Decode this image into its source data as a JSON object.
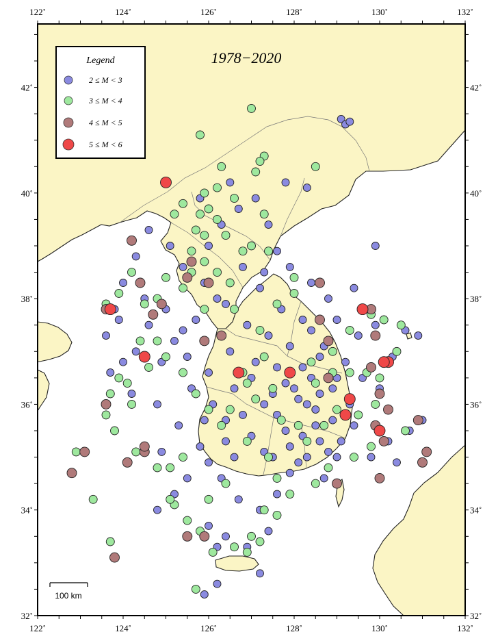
{
  "title": "1978−2020",
  "lon_ticks": [
    "122˚",
    "124˚",
    "126˚",
    "128˚",
    "130˚",
    "132˚"
  ],
  "lat_ticks": [
    "32˚",
    "34˚",
    "36˚",
    "38˚",
    "40˚",
    "42˚"
  ],
  "legend": {
    "title": "Legend",
    "items": [
      {
        "label": "2 ≤ M < 3",
        "color": "#8a8ae0"
      },
      {
        "label": "3 ≤ M < 4",
        "color": "#9ee89e"
      },
      {
        "label": "4 ≤ M < 5",
        "color": "#b07a7a"
      },
      {
        "label": "5 ≤ M < 6",
        "color": "#ef4848"
      }
    ]
  },
  "scale_bar": {
    "label": "100 km"
  },
  "colors": {
    "land": "#fbf5c5",
    "sea": "#ffffff",
    "coast": "#222222",
    "border": "#666666"
  },
  "chart_data": {
    "type": "scatter",
    "title": "1978−2020",
    "xlim": [
      122,
      132
    ],
    "ylim": [
      32,
      43.2
    ],
    "series": [
      {
        "name": "2 ≤ M < 3",
        "points": [
          [
            124.9,
            35.1
          ],
          [
            126.2,
            33.3
          ],
          [
            125.9,
            32.4
          ],
          [
            126.5,
            37.0
          ],
          [
            127.0,
            36.5
          ],
          [
            127.5,
            36.2
          ],
          [
            128.1,
            36.1
          ],
          [
            128.5,
            35.9
          ],
          [
            128.9,
            35.7
          ],
          [
            129.3,
            36.0
          ],
          [
            129.6,
            36.5
          ],
          [
            129.5,
            37.3
          ],
          [
            129.0,
            37.6
          ],
          [
            128.6,
            36.9
          ],
          [
            128.2,
            36.7
          ],
          [
            127.8,
            36.4
          ],
          [
            127.3,
            36.0
          ],
          [
            126.8,
            35.8
          ],
          [
            126.4,
            35.3
          ],
          [
            126.0,
            34.9
          ],
          [
            125.5,
            34.6
          ],
          [
            125.2,
            34.3
          ],
          [
            124.8,
            34.0
          ],
          [
            126.0,
            33.7
          ],
          [
            126.4,
            33.5
          ],
          [
            126.9,
            33.3
          ],
          [
            127.4,
            33.6
          ],
          [
            127.6,
            34.3
          ],
          [
            127.9,
            34.7
          ],
          [
            128.3,
            35.0
          ],
          [
            128.8,
            35.1
          ],
          [
            129.1,
            35.3
          ],
          [
            129.4,
            35.6
          ],
          [
            129.8,
            35.0
          ],
          [
            130.2,
            35.3
          ],
          [
            130.4,
            34.9
          ],
          [
            130.7,
            35.5
          ],
          [
            130.0,
            36.3
          ],
          [
            130.3,
            36.9
          ],
          [
            129.9,
            37.5
          ],
          [
            129.4,
            38.2
          ],
          [
            128.8,
            38.0
          ],
          [
            128.4,
            37.4
          ],
          [
            127.9,
            37.1
          ],
          [
            127.4,
            37.3
          ],
          [
            126.9,
            37.5
          ],
          [
            126.4,
            37.9
          ],
          [
            125.9,
            38.3
          ],
          [
            125.4,
            38.6
          ],
          [
            125.1,
            39.0
          ],
          [
            124.6,
            39.3
          ],
          [
            124.3,
            38.8
          ],
          [
            124.0,
            38.3
          ],
          [
            123.8,
            37.8
          ],
          [
            123.6,
            37.3
          ],
          [
            123.7,
            36.6
          ],
          [
            124.2,
            36.2
          ],
          [
            124.8,
            36.0
          ],
          [
            125.3,
            35.6
          ],
          [
            125.8,
            35.2
          ],
          [
            126.3,
            34.6
          ],
          [
            126.7,
            34.2
          ],
          [
            127.2,
            34.0
          ],
          [
            127.5,
            35.0
          ],
          [
            127.8,
            35.5
          ],
          [
            128.2,
            35.4
          ],
          [
            128.6,
            35.3
          ],
          [
            129.0,
            35.0
          ],
          [
            128.7,
            34.6
          ],
          [
            128.1,
            34.9
          ],
          [
            126.0,
            39.0
          ],
          [
            126.3,
            39.4
          ],
          [
            126.7,
            39.7
          ],
          [
            127.1,
            39.9
          ],
          [
            127.4,
            39.4
          ],
          [
            127.6,
            38.9
          ],
          [
            127.3,
            38.5
          ],
          [
            126.8,
            38.6
          ],
          [
            126.2,
            38.0
          ],
          [
            125.7,
            37.6
          ],
          [
            125.2,
            37.2
          ],
          [
            124.9,
            36.8
          ],
          [
            125.5,
            36.9
          ],
          [
            126.0,
            36.6
          ],
          [
            126.6,
            36.3
          ],
          [
            127.1,
            36.8
          ],
          [
            127.6,
            36.7
          ],
          [
            128.0,
            36.3
          ],
          [
            128.4,
            36.5
          ],
          [
            128.9,
            36.3
          ],
          [
            129.2,
            36.8
          ],
          [
            128.7,
            37.1
          ],
          [
            128.2,
            37.6
          ],
          [
            127.7,
            37.8
          ],
          [
            127.2,
            38.2
          ],
          [
            127.9,
            38.6
          ],
          [
            128.4,
            38.3
          ],
          [
            129.9,
            39.0
          ],
          [
            125.8,
            39.9
          ],
          [
            126.5,
            40.2
          ],
          [
            127.8,
            40.2
          ],
          [
            128.3,
            40.1
          ],
          [
            129.1,
            41.4
          ],
          [
            129.2,
            41.3
          ],
          [
            129.3,
            41.35
          ],
          [
            130.9,
            37.3
          ],
          [
            130.6,
            37.4
          ],
          [
            131.0,
            35.7
          ],
          [
            126.2,
            32.6
          ],
          [
            127.2,
            32.8
          ],
          [
            126.6,
            35.0
          ],
          [
            127.0,
            35.4
          ],
          [
            127.3,
            35.1
          ],
          [
            127.6,
            35.8
          ],
          [
            128.3,
            36.0
          ],
          [
            128.6,
            36.2
          ],
          [
            129.0,
            36.5
          ],
          [
            128.5,
            35.6
          ],
          [
            127.9,
            35.2
          ],
          [
            126.1,
            36.0
          ],
          [
            125.6,
            36.3
          ],
          [
            125.9,
            35.7
          ],
          [
            126.4,
            35.7
          ],
          [
            124.6,
            37.5
          ],
          [
            124.3,
            37.0
          ],
          [
            124.0,
            36.8
          ],
          [
            123.9,
            37.6
          ],
          [
            124.5,
            38.0
          ],
          [
            125.0,
            37.8
          ],
          [
            125.4,
            37.4
          ]
        ]
      },
      {
        "name": "3 ≤ M < 4",
        "points": [
          [
            127.0,
            41.6
          ],
          [
            125.8,
            41.1
          ],
          [
            127.3,
            40.7
          ],
          [
            127.2,
            40.6
          ],
          [
            126.3,
            40.5
          ],
          [
            127.1,
            40.4
          ],
          [
            128.5,
            40.5
          ],
          [
            125.4,
            39.8
          ],
          [
            125.8,
            39.6
          ],
          [
            126.2,
            39.5
          ],
          [
            125.9,
            39.2
          ],
          [
            125.6,
            38.9
          ],
          [
            125.9,
            38.7
          ],
          [
            125.6,
            38.5
          ],
          [
            126.2,
            38.5
          ],
          [
            125.0,
            38.4
          ],
          [
            124.8,
            38.0
          ],
          [
            124.5,
            37.9
          ],
          [
            124.2,
            38.5
          ],
          [
            123.9,
            38.1
          ],
          [
            123.6,
            37.9
          ],
          [
            124.4,
            37.2
          ],
          [
            125.0,
            36.9
          ],
          [
            125.4,
            36.6
          ],
          [
            125.7,
            36.2
          ],
          [
            126.0,
            35.9
          ],
          [
            126.3,
            35.6
          ],
          [
            126.9,
            35.3
          ],
          [
            127.4,
            35.0
          ],
          [
            127.6,
            34.6
          ],
          [
            127.3,
            34.0
          ],
          [
            127.0,
            33.5
          ],
          [
            126.6,
            33.3
          ],
          [
            126.1,
            33.2
          ],
          [
            125.8,
            33.6
          ],
          [
            125.5,
            33.8
          ],
          [
            125.2,
            34.1
          ],
          [
            125.1,
            34.2
          ],
          [
            124.8,
            34.8
          ],
          [
            124.3,
            35.1
          ],
          [
            123.8,
            35.5
          ],
          [
            123.6,
            35.8
          ],
          [
            123.7,
            36.2
          ],
          [
            123.9,
            36.5
          ],
          [
            124.1,
            36.4
          ],
          [
            124.6,
            36.7
          ],
          [
            125.4,
            35.0
          ],
          [
            125.1,
            34.8
          ],
          [
            126.0,
            34.2
          ],
          [
            126.4,
            34.5
          ],
          [
            127.7,
            35.7
          ],
          [
            128.1,
            35.6
          ],
          [
            128.5,
            36.4
          ],
          [
            128.9,
            36.6
          ],
          [
            129.3,
            36.6
          ],
          [
            129.7,
            36.6
          ],
          [
            130.0,
            36.5
          ],
          [
            130.4,
            37.0
          ],
          [
            130.5,
            37.5
          ],
          [
            130.1,
            37.6
          ],
          [
            129.8,
            37.7
          ],
          [
            129.3,
            37.4
          ],
          [
            128.9,
            37.0
          ],
          [
            128.4,
            36.8
          ],
          [
            127.9,
            36.6
          ],
          [
            127.5,
            36.3
          ],
          [
            127.1,
            36.1
          ],
          [
            126.8,
            36.6
          ],
          [
            127.2,
            37.4
          ],
          [
            126.6,
            37.8
          ],
          [
            128.0,
            38.1
          ],
          [
            128.0,
            38.4
          ],
          [
            127.4,
            38.9
          ],
          [
            127.0,
            39.0
          ],
          [
            127.3,
            39.6
          ],
          [
            126.6,
            39.9
          ],
          [
            126.2,
            40.1
          ],
          [
            125.7,
            39.3
          ],
          [
            125.4,
            38.2
          ],
          [
            125.9,
            37.8
          ],
          [
            124.8,
            37.2
          ],
          [
            124.2,
            36.0
          ],
          [
            130.6,
            35.5
          ],
          [
            129.8,
            35.2
          ],
          [
            129.4,
            35.0
          ],
          [
            128.8,
            34.8
          ],
          [
            128.5,
            34.5
          ],
          [
            127.9,
            34.3
          ],
          [
            127.6,
            33.9
          ],
          [
            127.2,
            33.4
          ],
          [
            126.9,
            33.2
          ],
          [
            125.7,
            32.5
          ],
          [
            123.3,
            34.2
          ],
          [
            122.9,
            35.1
          ],
          [
            123.7,
            33.4
          ],
          [
            126.0,
            39.7
          ],
          [
            125.9,
            40.0
          ],
          [
            125.2,
            39.6
          ],
          [
            126.4,
            39.2
          ],
          [
            126.8,
            38.9
          ],
          [
            126.5,
            38.3
          ],
          [
            127.6,
            37.9
          ],
          [
            127.3,
            36.9
          ],
          [
            126.9,
            36.4
          ],
          [
            126.5,
            35.9
          ],
          [
            128.3,
            35.3
          ],
          [
            128.7,
            35.6
          ],
          [
            129.0,
            35.9
          ],
          [
            129.5,
            35.8
          ],
          [
            129.9,
            36.0
          ]
        ]
      },
      {
        "name": "4 ≤ M < 5",
        "points": [
          [
            124.2,
            39.1
          ],
          [
            124.4,
            38.3
          ],
          [
            123.6,
            37.8
          ],
          [
            124.7,
            37.7
          ],
          [
            124.9,
            37.9
          ],
          [
            125.5,
            38.4
          ],
          [
            125.6,
            38.7
          ],
          [
            126.0,
            38.3
          ],
          [
            125.9,
            37.2
          ],
          [
            126.3,
            37.3
          ],
          [
            128.6,
            38.3
          ],
          [
            128.6,
            37.6
          ],
          [
            129.8,
            37.8
          ],
          [
            129.9,
            37.3
          ],
          [
            128.8,
            37.2
          ],
          [
            128.8,
            36.5
          ],
          [
            129.8,
            36.7
          ],
          [
            130.0,
            36.2
          ],
          [
            130.2,
            35.9
          ],
          [
            129.9,
            35.6
          ],
          [
            130.1,
            35.3
          ],
          [
            130.9,
            35.7
          ],
          [
            131.0,
            34.9
          ],
          [
            131.1,
            35.1
          ],
          [
            129.0,
            34.5
          ],
          [
            130.0,
            34.6
          ],
          [
            124.5,
            35.1
          ],
          [
            124.5,
            35.2
          ],
          [
            124.1,
            34.9
          ],
          [
            123.6,
            36.0
          ],
          [
            123.1,
            35.1
          ],
          [
            122.8,
            34.7
          ],
          [
            123.8,
            33.1
          ],
          [
            125.5,
            33.5
          ],
          [
            125.9,
            33.5
          ]
        ]
      },
      {
        "name": "5 ≤ M < 6",
        "points": [
          [
            125.0,
            40.2
          ],
          [
            123.7,
            37.8
          ],
          [
            124.5,
            36.9
          ],
          [
            126.7,
            36.6
          ],
          [
            127.9,
            36.6
          ],
          [
            129.3,
            36.1
          ],
          [
            129.2,
            35.8
          ],
          [
            130.0,
            35.5
          ],
          [
            130.2,
            36.8
          ],
          [
            130.1,
            36.8
          ],
          [
            129.6,
            37.8
          ]
        ]
      }
    ]
  }
}
